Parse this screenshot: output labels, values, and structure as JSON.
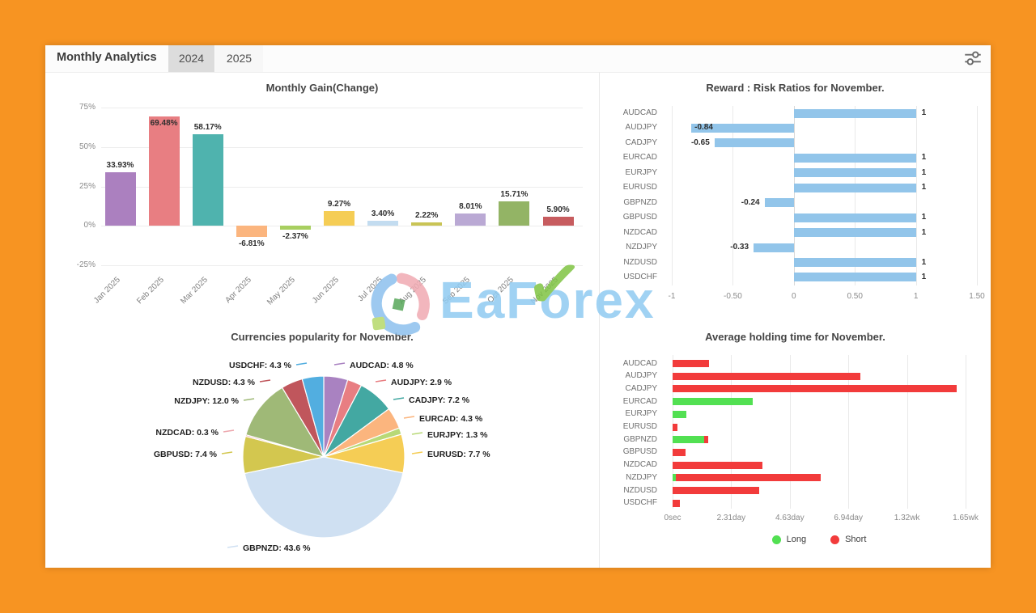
{
  "header": {
    "title": "Monthly Analytics",
    "tabs": [
      {
        "label": "2024",
        "active": true
      },
      {
        "label": "2025",
        "active": false
      }
    ]
  },
  "watermark": {
    "text": "EaForex"
  },
  "colors": {
    "frame_orange": "#f79422",
    "rr_bar_blue": "#92c5ea",
    "long_green": "#52e052",
    "short_red": "#f23b3b"
  },
  "chart_data": [
    {
      "id": "monthly_gain",
      "type": "bar",
      "title": "Monthly Gain(Change)",
      "categories": [
        "Jan 2025",
        "Feb 2025",
        "Mar 2025",
        "Apr 2025",
        "May 2025",
        "Jun 2025",
        "Jul 2025",
        "Aug 2025",
        "Sep 2025",
        "Oct 2025",
        "Nov 2025"
      ],
      "values": [
        33.93,
        69.48,
        58.17,
        -6.81,
        -2.37,
        9.27,
        3.4,
        2.22,
        8.01,
        15.71,
        5.9
      ],
      "value_labels": [
        "33.93%",
        "69.48%",
        "58.17%",
        "-6.81%",
        "-2.37%",
        "9.27%",
        "3.40%",
        "2.22%",
        "8.01%",
        "15.71%",
        "5.90%"
      ],
      "bar_colors": [
        "#ab80bf",
        "#e87e82",
        "#4fb3ae",
        "#fbb57e",
        "#a8cf60",
        "#f5cd55",
        "#c3dcf0",
        "#c9c455",
        "#baa9d4",
        "#93b465",
        "#c75c5f"
      ],
      "y_ticks": [
        "75%",
        "50%",
        "25%",
        "0%",
        "-25%"
      ],
      "ylim": [
        -25,
        75
      ],
      "grid": true
    },
    {
      "id": "reward_risk",
      "type": "bar-horizontal",
      "title": "Reward : Risk Ratios for November.",
      "categories": [
        "AUDCAD",
        "AUDJPY",
        "CADJPY",
        "EURCAD",
        "EURJPY",
        "EURUSD",
        "GBPNZD",
        "GBPUSD",
        "NZDCAD",
        "NZDJPY",
        "NZDUSD",
        "USDCHF"
      ],
      "values": [
        1,
        -0.84,
        -0.65,
        1,
        1,
        1,
        -0.24,
        1,
        1,
        -0.33,
        1,
        1
      ],
      "value_labels": [
        "1",
        "-0.84",
        "-0.65",
        "1",
        "1",
        "1",
        "-0.24",
        "1",
        "1",
        "-0.33",
        "1",
        "1"
      ],
      "x_ticks": [
        "-1",
        "-0.50",
        "0",
        "0.50",
        "1",
        "1.50"
      ],
      "xlim": [
        -1,
        1.5
      ],
      "bar_color": "#92c5ea",
      "grid": true
    },
    {
      "id": "currencies_popularity",
      "type": "pie",
      "title": "Currencies popularity for November.",
      "slices": [
        {
          "label": "AUDCAD",
          "value": 4.8,
          "display": "AUDCAD: 4.8 %",
          "color": "#a982c1"
        },
        {
          "label": "AUDJPY",
          "value": 2.9,
          "display": "AUDJPY: 2.9 %",
          "color": "#e87e82"
        },
        {
          "label": "CADJPY",
          "value": 7.2,
          "display": "CADJPY: 7.2 %",
          "color": "#43a8a2"
        },
        {
          "label": "EURCAD",
          "value": 4.3,
          "display": "EURCAD: 4.3 %",
          "color": "#fbb57e"
        },
        {
          "label": "EURJPY",
          "value": 1.3,
          "display": "EURJPY: 1.3 %",
          "color": "#b8d977"
        },
        {
          "label": "EURUSD",
          "value": 7.7,
          "display": "EURUSD: 7.7 %",
          "color": "#f5cd55"
        },
        {
          "label": "GBPNZD",
          "value": 43.6,
          "display": "GBPNZD: 43.6 %",
          "color": "#cfe0f2"
        },
        {
          "label": "GBPUSD",
          "value": 7.4,
          "display": "GBPUSD: 7.4 %",
          "color": "#d3c74f"
        },
        {
          "label": "NZDCAD",
          "value": 0.3,
          "display": "NZDCAD: 0.3 %",
          "color": "#eda6ad"
        },
        {
          "label": "NZDJPY",
          "value": 12.0,
          "display": "NZDJPY: 12.0 %",
          "color": "#9fb977"
        },
        {
          "label": "NZDUSD",
          "value": 4.3,
          "display": "NZDUSD: 4.3 %",
          "color": "#c0565c"
        },
        {
          "label": "USDCHF",
          "value": 4.3,
          "display": "USDCHF: 4.3 %",
          "color": "#52aee0"
        }
      ]
    },
    {
      "id": "avg_holding_time",
      "type": "bar-horizontal",
      "title": "Average holding time for November.",
      "categories": [
        "AUDCAD",
        "AUDJPY",
        "CADJPY",
        "EURCAD",
        "EURJPY",
        "EURUSD",
        "GBPNZD",
        "GBPUSD",
        "NZDCAD",
        "NZDJPY",
        "NZDUSD",
        "USDCHF"
      ],
      "series": [
        {
          "name": "Long",
          "color": "#52e052",
          "unit": "day",
          "values": [
            0,
            0,
            0,
            3.15,
            0.55,
            0,
            1.25,
            0,
            0,
            0.12,
            0,
            0
          ]
        },
        {
          "name": "Short",
          "color": "#f23b3b",
          "unit": "day",
          "values": [
            1.45,
            7.4,
            11.2,
            0,
            0,
            0.2,
            1.4,
            0.5,
            3.55,
            5.85,
            3.4,
            0.3
          ]
        }
      ],
      "x_ticks": [
        "0sec",
        "2.31day",
        "4.63day",
        "6.94day",
        "1.32wk",
        "1.65wk"
      ],
      "xlim_days": [
        0,
        11.55
      ],
      "legend": [
        "Long",
        "Short"
      ],
      "legend_position": "bottom"
    }
  ]
}
